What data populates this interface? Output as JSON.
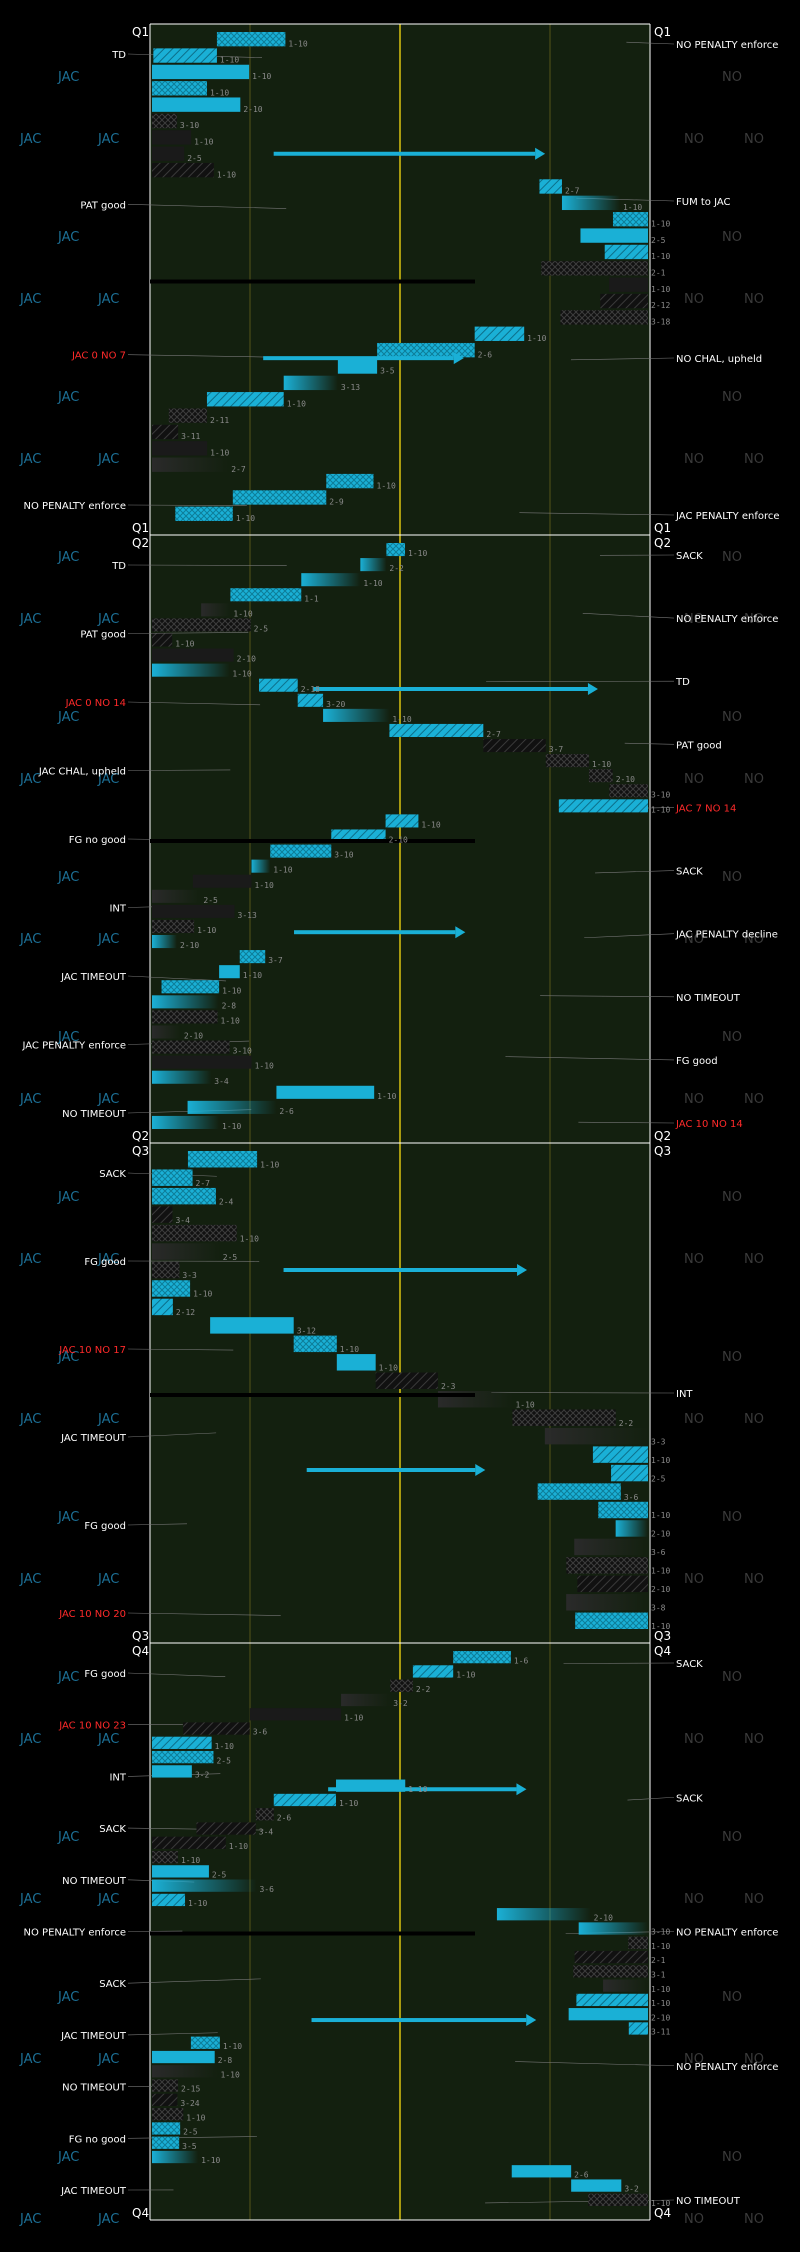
{
  "chart_data": {
    "type": "football-drive-chart",
    "title": "",
    "teams": {
      "home": "JAC",
      "away": "NO"
    },
    "colors": {
      "background": "#000000",
      "field": "#13200f",
      "home": "#1ab0d6",
      "home_watermark": "#1c6f95",
      "away_watermark": "#3a3a3a",
      "away_play": "#1a1a1a",
      "midfield": "#a89a10",
      "yard_line": "#55551a",
      "text": "#ffffff",
      "note": "#c0c0c0",
      "score": "#ff2a2a"
    },
    "quarters": [
      {
        "label": "Q1",
        "left_events": [
          {
            "text": "TD"
          },
          {
            "text": "PAT good"
          },
          {
            "text": "JAC 0 NO 7",
            "kind": "score"
          },
          {
            "text": "NO PENALTY enforce"
          }
        ],
        "right_events": [
          {
            "text": "NO PENALTY enforce"
          },
          {
            "text": "FUM to JAC"
          },
          {
            "text": "NO CHAL, upheld"
          },
          {
            "text": "JAC PENALTY enforce"
          }
        ],
        "down_labels": [
          "1-10",
          "1-10",
          "1-10",
          "1-10",
          "2-10",
          "3-10",
          "1-10",
          "2-5",
          "1-10",
          "2-7",
          "1-10",
          "1-10",
          "2-5",
          "1-10",
          "2-1",
          "1-10",
          "2-12",
          "3-18",
          "1-10",
          "2-6",
          "3-5",
          "3-13",
          "1-10",
          "2-11",
          "3-11",
          "1-10",
          "2-7",
          "1-10",
          "2-9",
          "1-10"
        ]
      },
      {
        "label": "Q2",
        "left_events": [
          {
            "text": "TD"
          },
          {
            "text": "PAT good"
          },
          {
            "text": "JAC 0 NO 14",
            "kind": "score"
          },
          {
            "text": "JAC CHAL, upheld"
          },
          {
            "text": "FG no good"
          },
          {
            "text": "INT"
          },
          {
            "text": "JAC TIMEOUT"
          },
          {
            "text": "JAC PENALTY enforce"
          },
          {
            "text": "NO TIMEOUT"
          }
        ],
        "right_events": [
          {
            "text": "SACK"
          },
          {
            "text": "NO PENALTY enforce"
          },
          {
            "text": "TD"
          },
          {
            "text": "PAT good"
          },
          {
            "text": "JAC 7 NO 14",
            "kind": "score"
          },
          {
            "text": "SACK"
          },
          {
            "text": "JAC PENALTY decline"
          },
          {
            "text": "NO TIMEOUT"
          },
          {
            "text": "FG good"
          },
          {
            "text": "JAC 10 NO 14",
            "kind": "score"
          }
        ],
        "down_labels": [
          "1-10",
          "2-2",
          "1-10",
          "1-1",
          "1-10",
          "2-5",
          "1-10",
          "2-10",
          "1-10",
          "2-18",
          "3-20",
          "1-10",
          "2-7",
          "3-7",
          "1-10",
          "2-10",
          "3-10",
          "1-10",
          "1-10",
          "2-10",
          "3-10",
          "1-10",
          "1-10",
          "2-5",
          "3-13",
          "1-10",
          "2-10",
          "3-7",
          "1-10",
          "1-10",
          "2-8",
          "1-10",
          "2-10",
          "3-10",
          "1-10",
          "3-4",
          "1-10",
          "2-6",
          "1-10"
        ]
      },
      {
        "label": "Q3",
        "left_events": [
          {
            "text": "SACK"
          },
          {
            "text": "FG good"
          },
          {
            "text": "JAC 10 NO 17",
            "kind": "score"
          },
          {
            "text": "JAC TIMEOUT"
          },
          {
            "text": "FG good"
          },
          {
            "text": "JAC 10 NO 20",
            "kind": "score"
          }
        ],
        "right_events": [
          {
            "text": "INT"
          }
        ],
        "down_labels": [
          "1-10",
          "2-7",
          "2-4",
          "3-4",
          "1-10",
          "2-5",
          "3-3",
          "1-10",
          "2-12",
          "3-12",
          "1-10",
          "1-10",
          "2-3",
          "1-10",
          "2-2",
          "3-3",
          "1-10",
          "2-5",
          "3-6",
          "1-10",
          "2-10",
          "3-6",
          "1-10",
          "2-10",
          "3-8",
          "1-10"
        ]
      },
      {
        "label": "Q4",
        "left_events": [
          {
            "text": "FG good"
          },
          {
            "text": "JAC 10 NO 23",
            "kind": "score"
          },
          {
            "text": "INT"
          },
          {
            "text": "SACK"
          },
          {
            "text": "NO TIMEOUT"
          },
          {
            "text": "NO PENALTY enforce"
          },
          {
            "text": "SACK"
          },
          {
            "text": "JAC TIMEOUT"
          },
          {
            "text": "NO TIMEOUT"
          },
          {
            "text": "FG no good"
          },
          {
            "text": "JAC TIMEOUT"
          }
        ],
        "right_events": [
          {
            "text": "SACK"
          },
          {
            "text": "SACK"
          },
          {
            "text": "NO PENALTY enforce"
          },
          {
            "text": "NO PENALTY enforce"
          },
          {
            "text": "NO TIMEOUT"
          }
        ],
        "down_labels": [
          "1-6",
          "1-10",
          "2-2",
          "3-2",
          "1-10",
          "3-6",
          "1-10",
          "2-5",
          "3-2",
          "1-10",
          "1-10",
          "2-6",
          "3-4",
          "1-10",
          "1-10",
          "2-5",
          "3-6",
          "1-10",
          "2-10",
          "3-10",
          "1-10",
          "2-1",
          "3-1",
          "1-10",
          "1-10",
          "2-10",
          "3-11",
          "1-10",
          "2-8",
          "1-10",
          "2-15",
          "3-24",
          "1-10",
          "2-5",
          "3-5",
          "1-10",
          "2-6",
          "3-2",
          "1-10"
        ]
      }
    ]
  }
}
